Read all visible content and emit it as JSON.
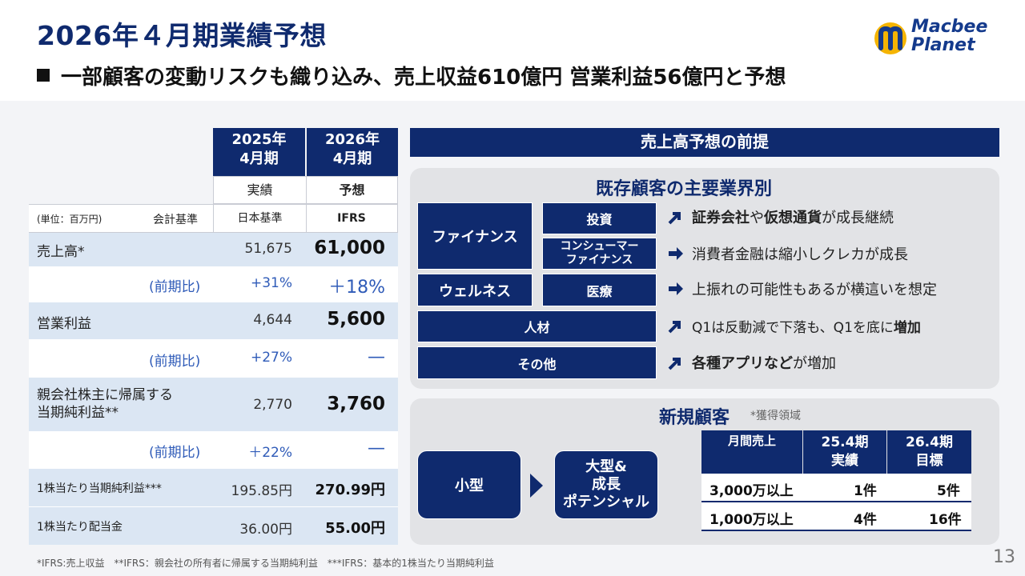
{
  "header": {
    "title": "2026年４月期業績予想",
    "subtitle": "一部顧客の変動リスクも織り込み、売上収益610億円 営業利益56億円と予想"
  },
  "logo": {
    "line1": "Macbee",
    "line2": "Planet"
  },
  "left_table": {
    "col1_header": [
      "2025年",
      "4月期"
    ],
    "col2_header": [
      "2026年",
      "4月期"
    ],
    "col1_sub": "実績",
    "col2_sub": "予想",
    "unit": "(単位：百万円)",
    "basis_label": "会計基準",
    "col1_basis": "日本基準",
    "col2_basis": "IFRS",
    "rows": [
      {
        "label": "売上高*",
        "v1": "51,675",
        "v2": "61,000"
      },
      {
        "label": "(前期比)",
        "v1": "+31%",
        "v2": "＋18%"
      },
      {
        "label": "営業利益",
        "v1": "4,644",
        "v2": "5,600"
      },
      {
        "label": "(前期比)",
        "v1": "+27%",
        "v2": "—"
      },
      {
        "label_line1": "親会社株主に帰属する",
        "label_line2": "当期純利益**",
        "v1": "2,770",
        "v2": "3,760"
      },
      {
        "label": "(前期比)",
        "v1": "＋22%",
        "v2": "—"
      },
      {
        "label": "1株当たり当期純利益***",
        "v1": "195.85円",
        "v2": "270.99円"
      },
      {
        "label": "1株当たり配当金",
        "v1": "36.00円",
        "v2": "55.00円"
      }
    ]
  },
  "right": {
    "header": "売上高予想の前提",
    "existing": {
      "title": "既存顧客の主要業界別",
      "finance": "ファイナンス",
      "invest": "投資",
      "consumer1": "コンシューマー",
      "consumer2": "ファイナンス",
      "wellness": "ウェルネス",
      "medical": "医療",
      "hr": "人材",
      "other": "その他",
      "notes": [
        {
          "arrow": "up",
          "bold1": "証券会社",
          "t1": "や",
          "bold2": "仮想通貨",
          "t2": "が成長継続"
        },
        {
          "arrow": "right",
          "text": "消費者金融は縮小しクレカが成長"
        },
        {
          "arrow": "right",
          "text": "上振れの可能性もあるが横這いを想定"
        },
        {
          "arrow": "up",
          "t1": "Q1は反動減で下落も、Q1を底に",
          "bold1": "増加"
        },
        {
          "arrow": "up",
          "bold1": "各種アプリなど",
          "t1": "が増加"
        }
      ]
    },
    "new_clients": {
      "title": "新規顧客",
      "note": "*獲得領域",
      "small": "小型",
      "large1": "大型&",
      "large2": "成長",
      "large3": "ポテンシャル",
      "table_headers": [
        [
          "月間売上"
        ],
        [
          "25.4期",
          "実績"
        ],
        [
          "26.4期",
          "目標"
        ]
      ],
      "table_rows": [
        {
          "label": "3,000万以上",
          "v1": "1件",
          "v2": "5件"
        },
        {
          "label": "1,000万以上",
          "v1": "4件",
          "v2": "16件"
        }
      ]
    }
  },
  "footer": "*IFRS:売上収益　**IFRS：親会社の所有者に帰属する当期純利益　***IFRS：基本的1株当たり当期純利益",
  "page_number": "13",
  "colors": {
    "navy": "#0f2a6e",
    "light_blue_row": "#dbe6f3",
    "percent_blue": "#2f5bb8"
  }
}
